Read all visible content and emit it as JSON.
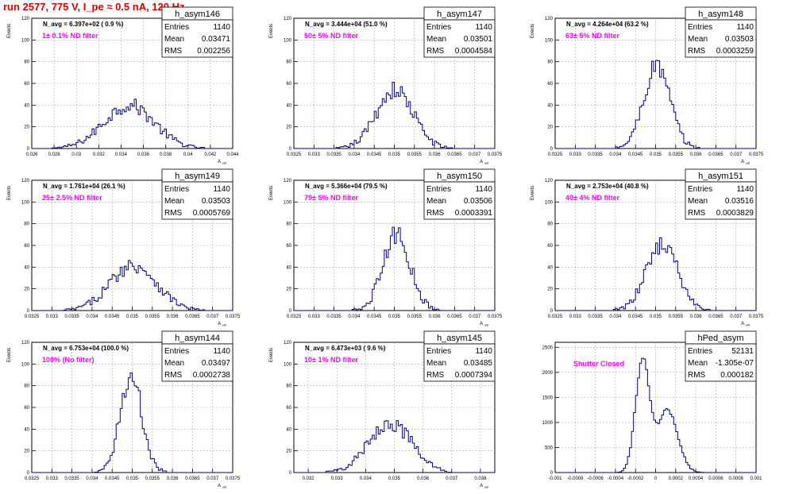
{
  "page_title": "run 2577,   775 V, I_pe ≈ 0.5 nA, 120 Hz",
  "colors": {
    "title": "#e00000",
    "histogram": "#000080",
    "annotation": "#ff00ff",
    "grid": "#aaaaaa"
  },
  "stats_labels": {
    "entries": "Entries",
    "mean": "Mean",
    "rms": "RMS"
  },
  "chart_data": [
    {
      "type": "histogram",
      "name": "h_asym146",
      "navg": "N_avg = 6.397e+02 ( 0.9 %)",
      "note": "1± 0.1% ND filter",
      "entries": "1140",
      "mean": "0.03471",
      "rms": "0.002256",
      "xlabel": "A_uid",
      "ylabel": "Events",
      "xlim": [
        0.026,
        0.044
      ],
      "ylim": [
        0,
        120
      ],
      "xticks": [
        "0.026",
        "0.028",
        "0.03",
        "0.032",
        "0.034",
        "0.036",
        "0.038",
        "0.04",
        "0.042",
        "0.044"
      ],
      "yticks": [
        "0",
        "20",
        "40",
        "60",
        "80",
        "100",
        "120"
      ],
      "gen": {
        "mu": 0.03471,
        "sigma": 0.002256,
        "peak": 40,
        "shape": "gauss"
      }
    },
    {
      "type": "histogram",
      "name": "h_asym147",
      "navg": "N_avg = 3.444e+04 (51.0 %)",
      "note": "50± 5% ND filter",
      "entries": "1140",
      "mean": "0.03501",
      "rms": "0.0004584",
      "xlabel": "A_uid",
      "ylabel": "Events",
      "xlim": [
        0.0325,
        0.0375
      ],
      "ylim": [
        0,
        120
      ],
      "xticks": [
        "0.0325",
        "0.033",
        "0.0335",
        "0.034",
        "0.0345",
        "0.035",
        "0.0355",
        "0.036",
        "0.0365",
        "0.037",
        "0.0375"
      ],
      "yticks": [
        "0",
        "20",
        "40",
        "60",
        "80",
        "100",
        "120"
      ],
      "gen": {
        "mu": 0.03501,
        "sigma": 0.0004584,
        "peak": 54,
        "shape": "gauss"
      }
    },
    {
      "type": "histogram",
      "name": "h_asym148",
      "navg": "N_avg = 4.264e+04 (63.2 %)",
      "note": "63± 5% ND filter",
      "entries": "1140",
      "mean": "0.03503",
      "rms": "0.0003259",
      "xlabel": "A_uid",
      "ylabel": "Events",
      "xlim": [
        0.0325,
        0.0375
      ],
      "ylim": [
        0,
        120
      ],
      "xticks": [
        "0.0325",
        "0.033",
        "0.0335",
        "0.034",
        "0.0345",
        "0.035",
        "0.0355",
        "0.036",
        "0.0365",
        "0.037",
        "0.0375"
      ],
      "yticks": [
        "0",
        "20",
        "40",
        "60",
        "80",
        "100",
        "120"
      ],
      "gen": {
        "mu": 0.03503,
        "sigma": 0.0003259,
        "peak": 76,
        "shape": "gauss"
      }
    },
    {
      "type": "histogram",
      "name": "h_asym149",
      "navg": "N_avg = 1.761e+04 (26.1 %)",
      "note": "25± 2.5% ND filter",
      "entries": "1140",
      "mean": "0.03503",
      "rms": "0.0005769",
      "xlabel": "A_uid",
      "ylabel": "Events",
      "xlim": [
        0.0325,
        0.0375
      ],
      "ylim": [
        0,
        120
      ],
      "xticks": [
        "0.0325",
        "0.033",
        "0.0335",
        "0.034",
        "0.0345",
        "0.035",
        "0.0355",
        "0.036",
        "0.0365",
        "0.037",
        "0.0375"
      ],
      "yticks": [
        "0",
        "20",
        "40",
        "60",
        "80",
        "100",
        "120"
      ],
      "gen": {
        "mu": 0.03503,
        "sigma": 0.0005769,
        "peak": 42,
        "shape": "gauss"
      }
    },
    {
      "type": "histogram",
      "name": "h_asym150",
      "navg": "N_avg = 5.366e+04 (79.5 %)",
      "note": "79± 5% ND filter",
      "entries": "1140",
      "mean": "0.03506",
      "rms": "0.0003391",
      "xlabel": "A_uid",
      "ylabel": "Events",
      "xlim": [
        0.0325,
        0.0375
      ],
      "ylim": [
        0,
        120
      ],
      "xticks": [
        "0.0325",
        "0.033",
        "0.0335",
        "0.034",
        "0.0345",
        "0.035",
        "0.0355",
        "0.036",
        "0.0365",
        "0.037",
        "0.0375"
      ],
      "yticks": [
        "0",
        "20",
        "40",
        "60",
        "80",
        "100",
        "120"
      ],
      "gen": {
        "mu": 0.03506,
        "sigma": 0.0003391,
        "peak": 70,
        "shape": "gauss"
      }
    },
    {
      "type": "histogram",
      "name": "h_asym151",
      "navg": "N_avg = 2.753e+04 (40.8 %)",
      "note": "40± 4% ND filter",
      "entries": "1140",
      "mean": "0.03516",
      "rms": "0.0003829",
      "xlabel": "A_uid",
      "ylabel": "Events",
      "xlim": [
        0.0325,
        0.0375
      ],
      "ylim": [
        0,
        120
      ],
      "xticks": [
        "0.0325",
        "0.033",
        "0.0335",
        "0.034",
        "0.0345",
        "0.035",
        "0.0355",
        "0.036",
        "0.0365",
        "0.037",
        "0.0375"
      ],
      "yticks": [
        "0",
        "20",
        "40",
        "60",
        "80",
        "100",
        "120"
      ],
      "gen": {
        "mu": 0.03516,
        "sigma": 0.0003829,
        "peak": 62,
        "shape": "gauss"
      }
    },
    {
      "type": "histogram",
      "name": "h_asym144",
      "navg": "N_avg = 6.753e+04 (100.0 %)",
      "note": "100% (No filter)",
      "entries": "1140",
      "mean": "0.03497",
      "rms": "0.0002738",
      "xlabel": "A_uid",
      "ylabel": "Events",
      "xlim": [
        0.0325,
        0.0375
      ],
      "ylim": [
        0,
        120
      ],
      "xticks": [
        "0.0325",
        "0.033",
        "0.0335",
        "0.034",
        "0.0345",
        "0.035",
        "0.0355",
        "0.036",
        "0.0365",
        "0.037",
        "0.0375"
      ],
      "yticks": [
        "0",
        "20",
        "40",
        "60",
        "80",
        "100",
        "120"
      ],
      "gen": {
        "mu": 0.03497,
        "sigma": 0.0002738,
        "peak": 88,
        "shape": "gauss"
      }
    },
    {
      "type": "histogram",
      "name": "h_asym145",
      "navg": "N_avg = 6.473e+03 ( 9.6 %)",
      "note": "10± 1% ND filter",
      "entries": "1140",
      "mean": "0.03485",
      "rms": "0.0007394",
      "xlabel": "A_uid",
      "ylabel": "Events",
      "xlim": [
        0.0315,
        0.0385
      ],
      "ylim": [
        0,
        120
      ],
      "xticks": [
        "0.032",
        "0.033",
        "0.034",
        "0.035",
        "0.036",
        "0.037",
        "0.038"
      ],
      "yticks": [
        "0",
        "20",
        "40",
        "60",
        "80",
        "100",
        "120"
      ],
      "gen": {
        "mu": 0.03485,
        "sigma": 0.0007394,
        "peak": 46,
        "shape": "gauss"
      }
    },
    {
      "type": "histogram",
      "name": "hPed_asym",
      "navg": "",
      "note": "Shutter Closed",
      "entries": "52131",
      "mean": "-1.305e-07",
      "rms": "0.000182",
      "xlabel": "",
      "ylabel": "",
      "xlim": [
        -0.001,
        0.001
      ],
      "ylim": [
        0,
        2600
      ],
      "xticks": [
        "-0.001",
        "-0.0008",
        "-0.0006",
        "-0.0004",
        "-0.0002",
        "0",
        "0.0002",
        "0.0004",
        "0.0006",
        "0.0008",
        "0.001"
      ],
      "yticks": [
        "0",
        "500",
        "1000",
        "1500",
        "2000",
        "2500"
      ],
      "gen": {
        "shape": "double",
        "peaks": [
          [
            -0.00013,
            7e-05,
            2250
          ],
          [
            0.00012,
            0.0001,
            1250
          ]
        ]
      }
    }
  ]
}
